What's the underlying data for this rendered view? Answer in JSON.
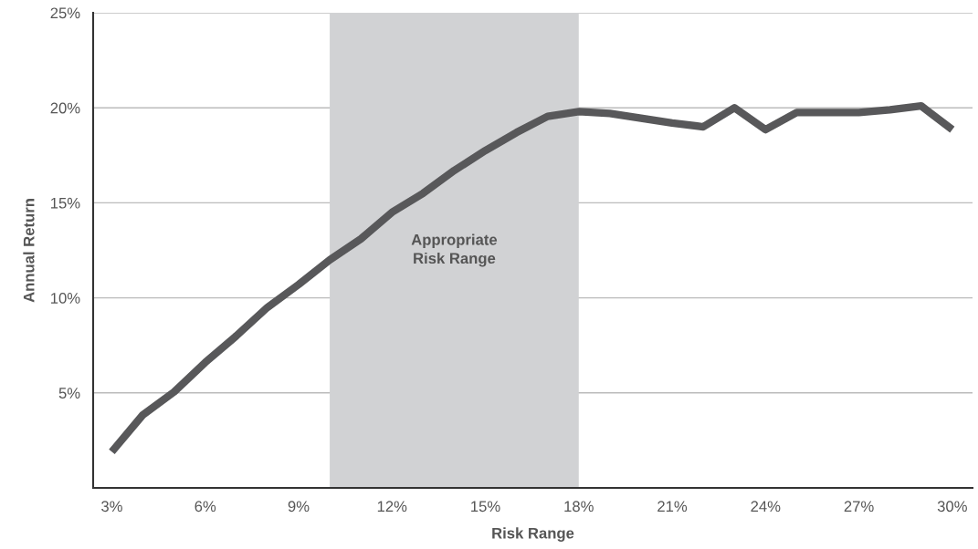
{
  "chart_data": {
    "type": "line",
    "xlabel": "Risk Range",
    "ylabel": "Annual Return",
    "x": [
      3,
      4,
      5,
      6,
      7,
      8,
      9,
      10,
      11,
      12,
      13,
      14,
      15,
      16,
      17,
      18,
      19,
      20,
      21,
      22,
      23,
      24,
      25,
      26,
      27,
      28,
      29,
      30
    ],
    "series": [
      {
        "color": "#58585a",
        "values": [
          1.9,
          3.85,
          5.05,
          6.6,
          8.0,
          9.5,
          10.7,
          12.0,
          13.1,
          14.5,
          15.5,
          16.7,
          17.75,
          18.7,
          19.55,
          19.8,
          19.7,
          19.45,
          19.2,
          19.0,
          20.0,
          18.85,
          19.75,
          19.75,
          19.75,
          19.9,
          20.1,
          18.85
        ]
      }
    ],
    "xlim": [
      2.4,
      30.65
    ],
    "ylim": [
      0,
      25
    ],
    "xticks": [
      {
        "value": 3,
        "label": "3%"
      },
      {
        "value": 6,
        "label": "6%"
      },
      {
        "value": 9,
        "label": "9%"
      },
      {
        "value": 12,
        "label": "12%"
      },
      {
        "value": 15,
        "label": "15%"
      },
      {
        "value": 18,
        "label": "18%"
      },
      {
        "value": 21,
        "label": "21%"
      },
      {
        "value": 24,
        "label": "24%"
      },
      {
        "value": 27,
        "label": "27%"
      },
      {
        "value": 30,
        "label": "30%"
      }
    ],
    "yticks": [
      {
        "value": 5,
        "label": "5%"
      },
      {
        "value": 10,
        "label": "10%"
      },
      {
        "value": 15,
        "label": "15%"
      },
      {
        "value": 20,
        "label": "20%"
      },
      {
        "value": 25,
        "label": "25%"
      }
    ],
    "bands": [
      {
        "axis": "x",
        "from": 10,
        "to": 18,
        "label": "Appropriate\nRisk Range",
        "color": "#d1d2d4"
      }
    ],
    "grid": "y",
    "marker": "none",
    "line_style": "solid"
  }
}
